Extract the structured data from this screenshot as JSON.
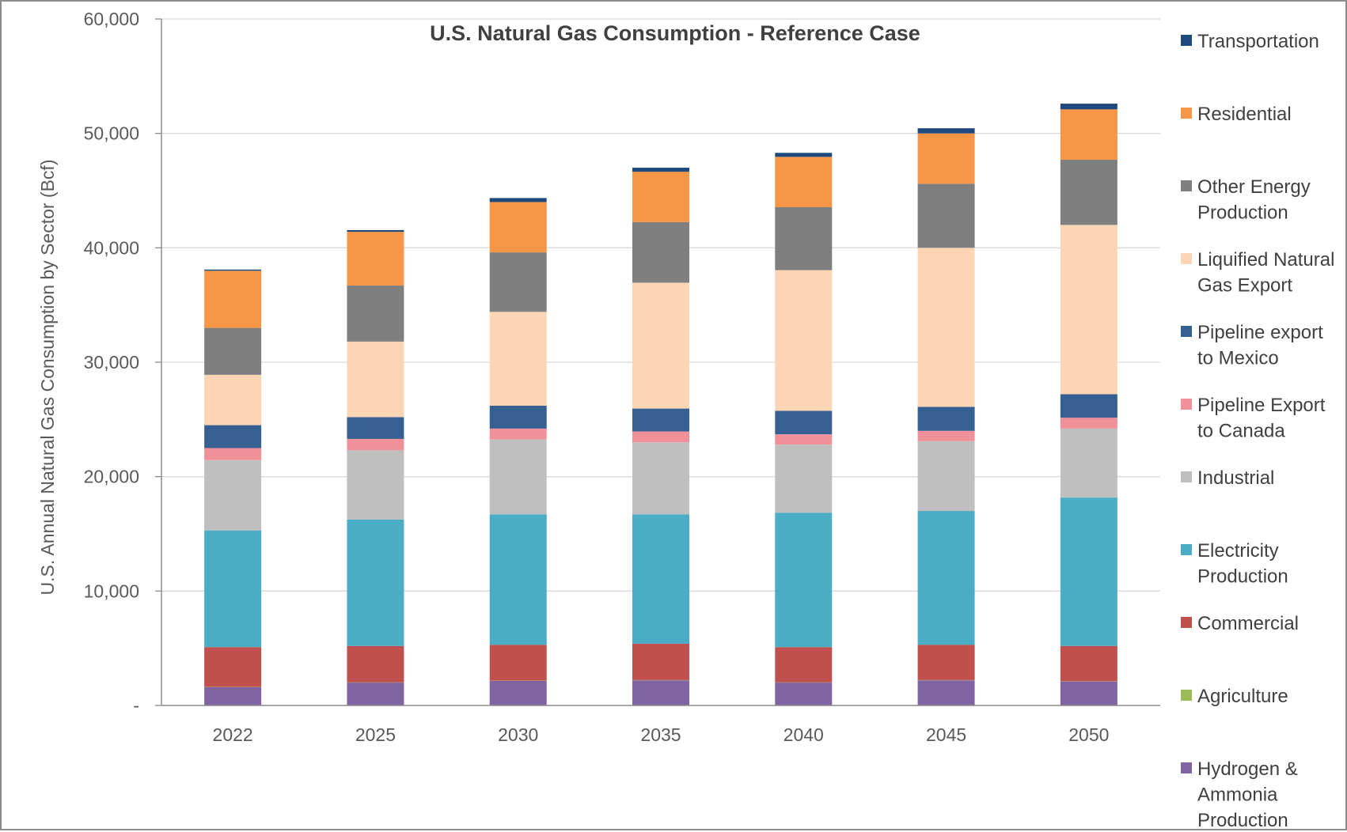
{
  "chart_data": {
    "type": "bar",
    "stacked": true,
    "title": "U.S. Natural Gas Consumption - Reference Case",
    "xlabel": "",
    "ylabel": "U.S. Annual Natural Gas Consumption by Sector (Bcf)",
    "ylim": [
      0,
      60000
    ],
    "yticks": [
      0,
      10000,
      20000,
      30000,
      40000,
      50000,
      60000
    ],
    "ytick_labels": [
      "-",
      "10,000",
      "20,000",
      "30,000",
      "40,000",
      "50,000",
      "60,000"
    ],
    "grid": true,
    "legend_position": "right",
    "categories": [
      "2022",
      "2025",
      "2030",
      "2035",
      "2040",
      "2045",
      "2050"
    ],
    "series": [
      {
        "name": "Hydrogen & Ammonia Production",
        "color": "#8064A2",
        "values": [
          1600,
          2000,
          2150,
          2200,
          2000,
          2200,
          2100
        ]
      },
      {
        "name": "Agriculture",
        "color": "#9BBB59",
        "values": [
          20,
          20,
          20,
          20,
          20,
          20,
          20
        ]
      },
      {
        "name": "Commercial",
        "color": "#C0504D",
        "values": [
          3480,
          3180,
          3130,
          3180,
          3080,
          3080,
          3080
        ]
      },
      {
        "name": "Electricity Production",
        "color": "#4BACC6",
        "values": [
          10200,
          11050,
          11400,
          11300,
          11750,
          11700,
          12970
        ]
      },
      {
        "name": "Industrial",
        "color": "#BFBFBF",
        "values": [
          6150,
          6050,
          6550,
          6300,
          5950,
          6100,
          6030
        ]
      },
      {
        "name": "Pipeline Export to Canada",
        "color": "#F0919A",
        "values": [
          1050,
          1000,
          950,
          950,
          900,
          900,
          950
        ]
      },
      {
        "name": "Pipeline export to Mexico",
        "color": "#376092",
        "values": [
          2000,
          1900,
          2000,
          2000,
          2050,
          2100,
          2050
        ]
      },
      {
        "name": "Liquified Natural Gas Export",
        "color": "#FCD5B5",
        "values": [
          4400,
          6600,
          8200,
          11000,
          12300,
          13900,
          14800
        ]
      },
      {
        "name": "Other Energy Production",
        "color": "#7F7F7F",
        "values": [
          4100,
          4900,
          5200,
          5300,
          5500,
          5600,
          5700
        ]
      },
      {
        "name": "Residential",
        "color": "#F79646",
        "values": [
          5000,
          4700,
          4400,
          4400,
          4400,
          4400,
          4400
        ]
      },
      {
        "name": "Transportation",
        "color": "#1F497D",
        "values": [
          100,
          150,
          350,
          350,
          350,
          450,
          500
        ]
      }
    ],
    "legend": [
      {
        "label_lines": [
          "Transportation"
        ],
        "color": "#1F497D"
      },
      {
        "label_lines": [
          "Residential"
        ],
        "color": "#F79646"
      },
      {
        "label_lines": [
          "Other Energy",
          "Production"
        ],
        "color": "#7F7F7F"
      },
      {
        "label_lines": [
          "Liquified Natural",
          "Gas Export"
        ],
        "color": "#FCD5B5"
      },
      {
        "label_lines": [
          "Pipeline export",
          "to Mexico"
        ],
        "color": "#376092"
      },
      {
        "label_lines": [
          "Pipeline Export",
          "to Canada"
        ],
        "color": "#F0919A"
      },
      {
        "label_lines": [
          "Industrial"
        ],
        "color": "#BFBFBF"
      },
      {
        "label_lines": [
          "Electricity",
          "Production"
        ],
        "color": "#4BACC6"
      },
      {
        "label_lines": [
          "Commercial"
        ],
        "color": "#C0504D"
      },
      {
        "label_lines": [
          "Agriculture"
        ],
        "color": "#9BBB59"
      },
      {
        "label_lines": [
          "Hydrogen &",
          "Ammonia",
          "Production"
        ],
        "color": "#8064A2"
      }
    ]
  }
}
